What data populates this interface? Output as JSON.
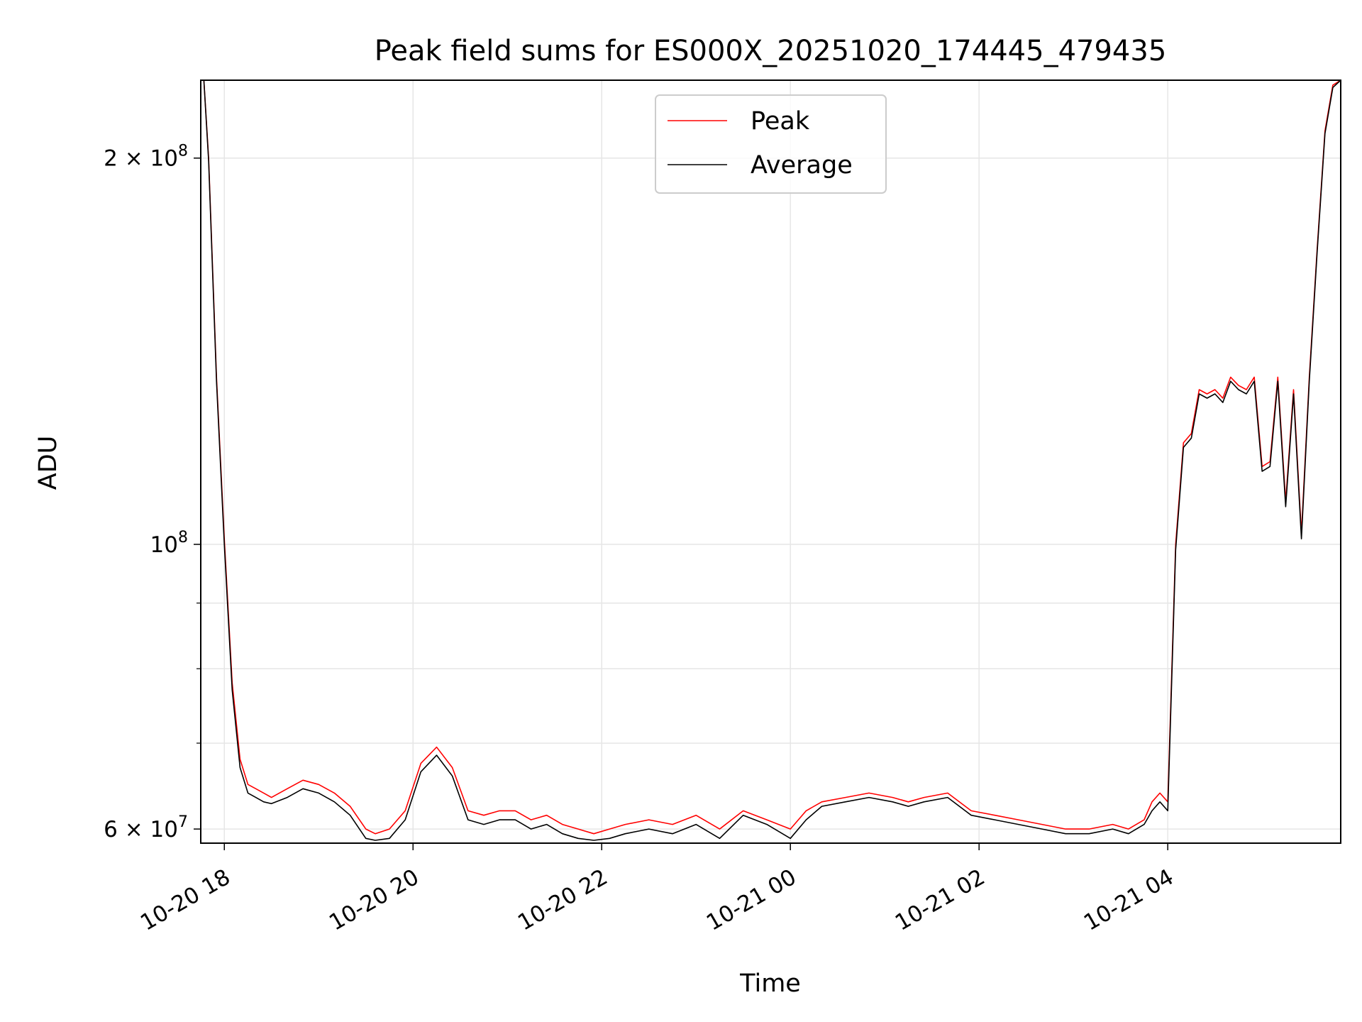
{
  "chart_data": {
    "type": "line",
    "title": "Peak field sums for ES000X_20251020_174445_479435",
    "xlabel": "Time",
    "ylabel": "ADU",
    "yscale": "log",
    "ylim": [
      58500000,
      230000000
    ],
    "xlim": [
      "2025-10-20 17:45",
      "2025-10-21 05:50"
    ],
    "grid": true,
    "legend_position": "upper center",
    "x_ticks": [
      "10-20 18",
      "10-20 20",
      "10-20 22",
      "10-21 00",
      "10-21 02",
      "10-21 04"
    ],
    "y_ticks": [
      "2 × 10^8",
      "10^8",
      "6 × 10^7"
    ],
    "colors": {
      "Peak": "#ff0000",
      "Average": "#000000"
    },
    "series": [
      {
        "name": "Peak",
        "x": [
          "2025-10-20 17:47",
          "2025-10-20 17:50",
          "2025-10-20 17:55",
          "2025-10-20 18:00",
          "2025-10-20 18:05",
          "2025-10-20 18:10",
          "2025-10-20 18:15",
          "2025-10-20 18:20",
          "2025-10-20 18:25",
          "2025-10-20 18:30",
          "2025-10-20 18:40",
          "2025-10-20 18:50",
          "2025-10-20 19:00",
          "2025-10-20 19:10",
          "2025-10-20 19:20",
          "2025-10-20 19:30",
          "2025-10-20 19:36",
          "2025-10-20 19:45",
          "2025-10-20 19:55",
          "2025-10-20 20:05",
          "2025-10-20 20:15",
          "2025-10-20 20:25",
          "2025-10-20 20:35",
          "2025-10-20 20:45",
          "2025-10-20 20:55",
          "2025-10-20 21:05",
          "2025-10-20 21:15",
          "2025-10-20 21:25",
          "2025-10-20 21:35",
          "2025-10-20 21:45",
          "2025-10-20 21:55",
          "2025-10-20 22:05",
          "2025-10-20 22:15",
          "2025-10-20 22:30",
          "2025-10-20 22:45",
          "2025-10-20 23:00",
          "2025-10-20 23:15",
          "2025-10-20 23:30",
          "2025-10-20 23:45",
          "2025-10-21 00:00",
          "2025-10-21 00:10",
          "2025-10-21 00:20",
          "2025-10-21 00:35",
          "2025-10-21 00:50",
          "2025-10-21 01:05",
          "2025-10-21 01:15",
          "2025-10-21 01:25",
          "2025-10-21 01:40",
          "2025-10-21 01:55",
          "2025-10-21 02:10",
          "2025-10-21 02:25",
          "2025-10-21 02:40",
          "2025-10-21 02:55",
          "2025-10-21 03:10",
          "2025-10-21 03:25",
          "2025-10-21 03:35",
          "2025-10-21 03:45",
          "2025-10-21 03:50",
          "2025-10-21 03:55",
          "2025-10-21 04:00",
          "2025-10-21 04:05",
          "2025-10-21 04:10",
          "2025-10-21 04:15",
          "2025-10-21 04:20",
          "2025-10-21 04:25",
          "2025-10-21 04:30",
          "2025-10-21 04:35",
          "2025-10-21 04:40",
          "2025-10-21 04:45",
          "2025-10-21 04:50",
          "2025-10-21 04:55",
          "2025-10-21 05:00",
          "2025-10-21 05:05",
          "2025-10-21 05:10",
          "2025-10-21 05:15",
          "2025-10-21 05:20",
          "2025-10-21 05:25",
          "2025-10-21 05:30",
          "2025-10-21 05:35",
          "2025-10-21 05:40",
          "2025-10-21 05:45",
          "2025-10-21 05:50"
        ],
        "y": [
          230000000,
          200000000,
          135000000,
          101000000,
          78000000,
          68000000,
          65000000,
          64500000,
          64000000,
          63500000,
          64500000,
          65500000,
          65000000,
          64000000,
          62500000,
          60000000,
          59500000,
          60000000,
          62000000,
          67500000,
          69500000,
          67000000,
          62000000,
          61500000,
          62000000,
          62000000,
          61000000,
          61500000,
          60500000,
          60000000,
          59500000,
          60000000,
          60500000,
          61000000,
          60500000,
          61500000,
          60000000,
          62000000,
          61000000,
          60000000,
          62000000,
          63000000,
          63500000,
          64000000,
          63500000,
          63000000,
          63500000,
          64000000,
          62000000,
          61500000,
          61000000,
          60500000,
          60000000,
          60000000,
          60500000,
          60000000,
          61000000,
          63000000,
          64000000,
          63000000,
          100000000,
          120000000,
          122000000,
          132000000,
          131000000,
          132000000,
          130000000,
          135000000,
          133000000,
          132000000,
          135000000,
          115000000,
          116000000,
          135000000,
          108000000,
          132000000,
          102000000,
          135000000,
          170000000,
          210000000,
          228000000,
          230000000
        ]
      },
      {
        "name": "Average",
        "x": [
          "2025-10-20 17:47",
          "2025-10-20 17:50",
          "2025-10-20 17:55",
          "2025-10-20 18:00",
          "2025-10-20 18:05",
          "2025-10-20 18:10",
          "2025-10-20 18:15",
          "2025-10-20 18:20",
          "2025-10-20 18:25",
          "2025-10-20 18:30",
          "2025-10-20 18:40",
          "2025-10-20 18:50",
          "2025-10-20 19:00",
          "2025-10-20 19:10",
          "2025-10-20 19:20",
          "2025-10-20 19:30",
          "2025-10-20 19:36",
          "2025-10-20 19:45",
          "2025-10-20 19:55",
          "2025-10-20 20:05",
          "2025-10-20 20:15",
          "2025-10-20 20:25",
          "2025-10-20 20:35",
          "2025-10-20 20:45",
          "2025-10-20 20:55",
          "2025-10-20 21:05",
          "2025-10-20 21:15",
          "2025-10-20 21:25",
          "2025-10-20 21:35",
          "2025-10-20 21:45",
          "2025-10-20 21:55",
          "2025-10-20 22:05",
          "2025-10-20 22:15",
          "2025-10-20 22:30",
          "2025-10-20 22:45",
          "2025-10-20 23:00",
          "2025-10-20 23:15",
          "2025-10-20 23:30",
          "2025-10-20 23:45",
          "2025-10-21 00:00",
          "2025-10-21 00:10",
          "2025-10-21 00:20",
          "2025-10-21 00:35",
          "2025-10-21 00:50",
          "2025-10-21 01:05",
          "2025-10-21 01:15",
          "2025-10-21 01:25",
          "2025-10-21 01:40",
          "2025-10-21 01:55",
          "2025-10-21 02:10",
          "2025-10-21 02:25",
          "2025-10-21 02:40",
          "2025-10-21 02:55",
          "2025-10-21 03:10",
          "2025-10-21 03:25",
          "2025-10-21 03:35",
          "2025-10-21 03:45",
          "2025-10-21 03:50",
          "2025-10-21 03:55",
          "2025-10-21 04:00",
          "2025-10-21 04:05",
          "2025-10-21 04:10",
          "2025-10-21 04:15",
          "2025-10-21 04:20",
          "2025-10-21 04:25",
          "2025-10-21 04:30",
          "2025-10-21 04:35",
          "2025-10-21 04:40",
          "2025-10-21 04:45",
          "2025-10-21 04:50",
          "2025-10-21 04:55",
          "2025-10-21 05:00",
          "2025-10-21 05:05",
          "2025-10-21 05:10",
          "2025-10-21 05:15",
          "2025-10-21 05:20",
          "2025-10-21 05:25",
          "2025-10-21 05:30",
          "2025-10-21 05:35",
          "2025-10-21 05:40",
          "2025-10-21 05:45",
          "2025-10-21 05:50"
        ],
        "y": [
          230000000,
          199000000,
          134000000,
          100000000,
          77000000,
          67000000,
          64000000,
          63500000,
          63000000,
          62800000,
          63500000,
          64500000,
          64000000,
          63000000,
          61500000,
          59000000,
          58800000,
          59000000,
          61000000,
          66500000,
          68500000,
          66000000,
          61000000,
          60500000,
          61000000,
          61000000,
          60000000,
          60500000,
          59500000,
          59000000,
          58800000,
          59000000,
          59500000,
          60000000,
          59500000,
          60500000,
          59000000,
          61500000,
          60500000,
          59000000,
          61000000,
          62500000,
          63000000,
          63500000,
          63000000,
          62500000,
          63000000,
          63500000,
          61500000,
          61000000,
          60500000,
          60000000,
          59500000,
          59500000,
          60000000,
          59500000,
          60500000,
          62000000,
          63000000,
          62000000,
          99000000,
          119000000,
          121000000,
          131000000,
          130000000,
          131000000,
          129000000,
          134000000,
          132000000,
          131000000,
          134000000,
          114000000,
          115000000,
          134000000,
          107000000,
          131000000,
          101000000,
          134000000,
          169000000,
          209000000,
          227000000,
          230000000
        ]
      }
    ]
  }
}
